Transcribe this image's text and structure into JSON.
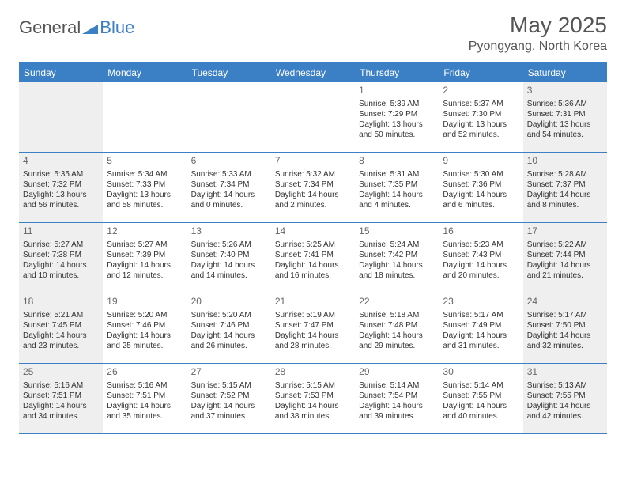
{
  "logo": {
    "text_general": "General",
    "text_blue": "Blue"
  },
  "title": "May 2025",
  "location": "Pyongyang, North Korea",
  "colors": {
    "brand_blue": "#3b7fc4",
    "header_text": "#555555",
    "body_text": "#333333",
    "shaded_bg": "#efefef",
    "background": "#ffffff"
  },
  "weekdays": [
    "Sunday",
    "Monday",
    "Tuesday",
    "Wednesday",
    "Thursday",
    "Friday",
    "Saturday"
  ],
  "weeks": [
    [
      {
        "day": "",
        "sunrise": "",
        "sunset": "",
        "daylight1": "",
        "daylight2": "",
        "shaded": true
      },
      {
        "day": "",
        "sunrise": "",
        "sunset": "",
        "daylight1": "",
        "daylight2": "",
        "shaded": false
      },
      {
        "day": "",
        "sunrise": "",
        "sunset": "",
        "daylight1": "",
        "daylight2": "",
        "shaded": false
      },
      {
        "day": "",
        "sunrise": "",
        "sunset": "",
        "daylight1": "",
        "daylight2": "",
        "shaded": false
      },
      {
        "day": "1",
        "sunrise": "Sunrise: 5:39 AM",
        "sunset": "Sunset: 7:29 PM",
        "daylight1": "Daylight: 13 hours",
        "daylight2": "and 50 minutes.",
        "shaded": false
      },
      {
        "day": "2",
        "sunrise": "Sunrise: 5:37 AM",
        "sunset": "Sunset: 7:30 PM",
        "daylight1": "Daylight: 13 hours",
        "daylight2": "and 52 minutes.",
        "shaded": false
      },
      {
        "day": "3",
        "sunrise": "Sunrise: 5:36 AM",
        "sunset": "Sunset: 7:31 PM",
        "daylight1": "Daylight: 13 hours",
        "daylight2": "and 54 minutes.",
        "shaded": true
      }
    ],
    [
      {
        "day": "4",
        "sunrise": "Sunrise: 5:35 AM",
        "sunset": "Sunset: 7:32 PM",
        "daylight1": "Daylight: 13 hours",
        "daylight2": "and 56 minutes.",
        "shaded": true
      },
      {
        "day": "5",
        "sunrise": "Sunrise: 5:34 AM",
        "sunset": "Sunset: 7:33 PM",
        "daylight1": "Daylight: 13 hours",
        "daylight2": "and 58 minutes.",
        "shaded": false
      },
      {
        "day": "6",
        "sunrise": "Sunrise: 5:33 AM",
        "sunset": "Sunset: 7:34 PM",
        "daylight1": "Daylight: 14 hours",
        "daylight2": "and 0 minutes.",
        "shaded": false
      },
      {
        "day": "7",
        "sunrise": "Sunrise: 5:32 AM",
        "sunset": "Sunset: 7:34 PM",
        "daylight1": "Daylight: 14 hours",
        "daylight2": "and 2 minutes.",
        "shaded": false
      },
      {
        "day": "8",
        "sunrise": "Sunrise: 5:31 AM",
        "sunset": "Sunset: 7:35 PM",
        "daylight1": "Daylight: 14 hours",
        "daylight2": "and 4 minutes.",
        "shaded": false
      },
      {
        "day": "9",
        "sunrise": "Sunrise: 5:30 AM",
        "sunset": "Sunset: 7:36 PM",
        "daylight1": "Daylight: 14 hours",
        "daylight2": "and 6 minutes.",
        "shaded": false
      },
      {
        "day": "10",
        "sunrise": "Sunrise: 5:28 AM",
        "sunset": "Sunset: 7:37 PM",
        "daylight1": "Daylight: 14 hours",
        "daylight2": "and 8 minutes.",
        "shaded": true
      }
    ],
    [
      {
        "day": "11",
        "sunrise": "Sunrise: 5:27 AM",
        "sunset": "Sunset: 7:38 PM",
        "daylight1": "Daylight: 14 hours",
        "daylight2": "and 10 minutes.",
        "shaded": true
      },
      {
        "day": "12",
        "sunrise": "Sunrise: 5:27 AM",
        "sunset": "Sunset: 7:39 PM",
        "daylight1": "Daylight: 14 hours",
        "daylight2": "and 12 minutes.",
        "shaded": false
      },
      {
        "day": "13",
        "sunrise": "Sunrise: 5:26 AM",
        "sunset": "Sunset: 7:40 PM",
        "daylight1": "Daylight: 14 hours",
        "daylight2": "and 14 minutes.",
        "shaded": false
      },
      {
        "day": "14",
        "sunrise": "Sunrise: 5:25 AM",
        "sunset": "Sunset: 7:41 PM",
        "daylight1": "Daylight: 14 hours",
        "daylight2": "and 16 minutes.",
        "shaded": false
      },
      {
        "day": "15",
        "sunrise": "Sunrise: 5:24 AM",
        "sunset": "Sunset: 7:42 PM",
        "daylight1": "Daylight: 14 hours",
        "daylight2": "and 18 minutes.",
        "shaded": false
      },
      {
        "day": "16",
        "sunrise": "Sunrise: 5:23 AM",
        "sunset": "Sunset: 7:43 PM",
        "daylight1": "Daylight: 14 hours",
        "daylight2": "and 20 minutes.",
        "shaded": false
      },
      {
        "day": "17",
        "sunrise": "Sunrise: 5:22 AM",
        "sunset": "Sunset: 7:44 PM",
        "daylight1": "Daylight: 14 hours",
        "daylight2": "and 21 minutes.",
        "shaded": true
      }
    ],
    [
      {
        "day": "18",
        "sunrise": "Sunrise: 5:21 AM",
        "sunset": "Sunset: 7:45 PM",
        "daylight1": "Daylight: 14 hours",
        "daylight2": "and 23 minutes.",
        "shaded": true
      },
      {
        "day": "19",
        "sunrise": "Sunrise: 5:20 AM",
        "sunset": "Sunset: 7:46 PM",
        "daylight1": "Daylight: 14 hours",
        "daylight2": "and 25 minutes.",
        "shaded": false
      },
      {
        "day": "20",
        "sunrise": "Sunrise: 5:20 AM",
        "sunset": "Sunset: 7:46 PM",
        "daylight1": "Daylight: 14 hours",
        "daylight2": "and 26 minutes.",
        "shaded": false
      },
      {
        "day": "21",
        "sunrise": "Sunrise: 5:19 AM",
        "sunset": "Sunset: 7:47 PM",
        "daylight1": "Daylight: 14 hours",
        "daylight2": "and 28 minutes.",
        "shaded": false
      },
      {
        "day": "22",
        "sunrise": "Sunrise: 5:18 AM",
        "sunset": "Sunset: 7:48 PM",
        "daylight1": "Daylight: 14 hours",
        "daylight2": "and 29 minutes.",
        "shaded": false
      },
      {
        "day": "23",
        "sunrise": "Sunrise: 5:17 AM",
        "sunset": "Sunset: 7:49 PM",
        "daylight1": "Daylight: 14 hours",
        "daylight2": "and 31 minutes.",
        "shaded": false
      },
      {
        "day": "24",
        "sunrise": "Sunrise: 5:17 AM",
        "sunset": "Sunset: 7:50 PM",
        "daylight1": "Daylight: 14 hours",
        "daylight2": "and 32 minutes.",
        "shaded": true
      }
    ],
    [
      {
        "day": "25",
        "sunrise": "Sunrise: 5:16 AM",
        "sunset": "Sunset: 7:51 PM",
        "daylight1": "Daylight: 14 hours",
        "daylight2": "and 34 minutes.",
        "shaded": true
      },
      {
        "day": "26",
        "sunrise": "Sunrise: 5:16 AM",
        "sunset": "Sunset: 7:51 PM",
        "daylight1": "Daylight: 14 hours",
        "daylight2": "and 35 minutes.",
        "shaded": false
      },
      {
        "day": "27",
        "sunrise": "Sunrise: 5:15 AM",
        "sunset": "Sunset: 7:52 PM",
        "daylight1": "Daylight: 14 hours",
        "daylight2": "and 37 minutes.",
        "shaded": false
      },
      {
        "day": "28",
        "sunrise": "Sunrise: 5:15 AM",
        "sunset": "Sunset: 7:53 PM",
        "daylight1": "Daylight: 14 hours",
        "daylight2": "and 38 minutes.",
        "shaded": false
      },
      {
        "day": "29",
        "sunrise": "Sunrise: 5:14 AM",
        "sunset": "Sunset: 7:54 PM",
        "daylight1": "Daylight: 14 hours",
        "daylight2": "and 39 minutes.",
        "shaded": false
      },
      {
        "day": "30",
        "sunrise": "Sunrise: 5:14 AM",
        "sunset": "Sunset: 7:55 PM",
        "daylight1": "Daylight: 14 hours",
        "daylight2": "and 40 minutes.",
        "shaded": false
      },
      {
        "day": "31",
        "sunrise": "Sunrise: 5:13 AM",
        "sunset": "Sunset: 7:55 PM",
        "daylight1": "Daylight: 14 hours",
        "daylight2": "and 42 minutes.",
        "shaded": true
      }
    ]
  ]
}
